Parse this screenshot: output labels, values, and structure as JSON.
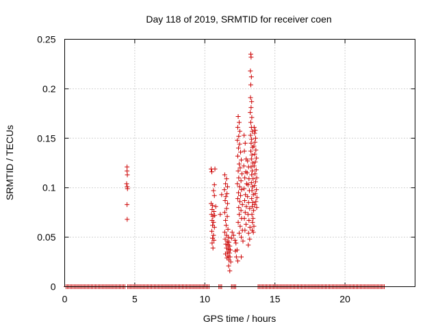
{
  "chart_data": {
    "type": "scatter",
    "title": "Day 118 of 2019, SRMTID for receiver coen",
    "xlabel": "GPS time / hours",
    "ylabel": "SRMTID / TECUs",
    "xlim": [
      0,
      25
    ],
    "ylim": [
      0,
      0.25
    ],
    "xticks": [
      0,
      5,
      10,
      15,
      20
    ],
    "xtick_labels": [
      "0",
      "5",
      "10",
      "15",
      "20"
    ],
    "yticks": [
      0,
      0.05,
      0.1,
      0.15,
      0.2,
      0.25
    ],
    "ytick_labels": [
      "0",
      "0.05",
      "0.1",
      "0.15",
      "0.2",
      "0.25"
    ],
    "grid": true,
    "marker": "plus",
    "color": "#cc0000",
    "series": [
      {
        "name": "SRMTID",
        "points": [
          [
            4.45,
            0.121
          ],
          [
            4.45,
            0.117
          ],
          [
            4.47,
            0.113
          ],
          [
            4.42,
            0.104
          ],
          [
            4.46,
            0.101
          ],
          [
            4.48,
            0.099
          ],
          [
            4.45,
            0.083
          ],
          [
            4.46,
            0.068
          ],
          [
            10.45,
            0.119
          ],
          [
            10.5,
            0.116
          ],
          [
            10.72,
            0.119
          ],
          [
            10.68,
            0.103
          ],
          [
            10.62,
            0.097
          ],
          [
            10.68,
            0.092
          ],
          [
            10.45,
            0.084
          ],
          [
            10.55,
            0.082
          ],
          [
            10.78,
            0.081
          ],
          [
            10.52,
            0.078
          ],
          [
            10.65,
            0.076
          ],
          [
            10.48,
            0.073
          ],
          [
            10.58,
            0.071
          ],
          [
            10.7,
            0.072
          ],
          [
            10.52,
            0.067
          ],
          [
            10.62,
            0.065
          ],
          [
            10.55,
            0.062
          ],
          [
            10.68,
            0.06
          ],
          [
            10.5,
            0.056
          ],
          [
            10.62,
            0.052
          ],
          [
            10.55,
            0.049
          ],
          [
            10.65,
            0.047
          ],
          [
            10.52,
            0.044
          ],
          [
            10.58,
            0.039
          ],
          [
            11.1,
            0.073
          ],
          [
            11.2,
            0.093
          ],
          [
            11.42,
            0.113
          ],
          [
            11.55,
            0.109
          ],
          [
            11.48,
            0.104
          ],
          [
            11.62,
            0.101
          ],
          [
            11.4,
            0.098
          ],
          [
            11.58,
            0.094
          ],
          [
            11.5,
            0.091
          ],
          [
            11.45,
            0.087
          ],
          [
            11.62,
            0.084
          ],
          [
            11.55,
            0.079
          ],
          [
            11.42,
            0.075
          ],
          [
            11.6,
            0.071
          ],
          [
            11.48,
            0.067
          ],
          [
            11.52,
            0.062
          ],
          [
            11.65,
            0.058
          ],
          [
            11.42,
            0.055
          ],
          [
            11.55,
            0.052
          ],
          [
            11.68,
            0.05
          ],
          [
            11.45,
            0.048
          ],
          [
            11.6,
            0.046
          ],
          [
            11.72,
            0.045
          ],
          [
            11.5,
            0.043
          ],
          [
            11.65,
            0.042
          ],
          [
            11.78,
            0.041
          ],
          [
            11.55,
            0.039
          ],
          [
            11.7,
            0.038
          ],
          [
            11.82,
            0.037
          ],
          [
            11.6,
            0.035
          ],
          [
            11.75,
            0.034
          ],
          [
            11.48,
            0.033
          ],
          [
            11.65,
            0.031
          ],
          [
            11.8,
            0.03
          ],
          [
            11.58,
            0.029
          ],
          [
            11.72,
            0.027
          ],
          [
            11.85,
            0.025
          ],
          [
            11.7,
            0.021
          ],
          [
            11.78,
            0.016
          ],
          [
            11.9,
            0.049
          ],
          [
            11.95,
            0.055
          ],
          [
            12.05,
            0.052
          ],
          [
            12.15,
            0.047
          ],
          [
            12.22,
            0.044
          ],
          [
            12.18,
            0.036
          ],
          [
            12.3,
            0.037
          ],
          [
            12.25,
            0.03
          ],
          [
            12.35,
            0.026
          ],
          [
            12.6,
            0.03
          ],
          [
            12.38,
            0.172
          ],
          [
            12.45,
            0.166
          ],
          [
            12.35,
            0.161
          ],
          [
            12.5,
            0.157
          ],
          [
            12.42,
            0.152
          ],
          [
            12.32,
            0.148
          ],
          [
            12.48,
            0.144
          ],
          [
            12.4,
            0.14
          ],
          [
            12.55,
            0.136
          ],
          [
            12.35,
            0.132
          ],
          [
            12.6,
            0.128
          ],
          [
            12.45,
            0.124
          ],
          [
            12.52,
            0.12
          ],
          [
            12.38,
            0.117
          ],
          [
            12.65,
            0.114
          ],
          [
            12.42,
            0.11
          ],
          [
            12.58,
            0.107
          ],
          [
            12.32,
            0.104
          ],
          [
            12.48,
            0.101
          ],
          [
            12.62,
            0.098
          ],
          [
            12.4,
            0.095
          ],
          [
            12.55,
            0.092
          ],
          [
            12.35,
            0.089
          ],
          [
            12.5,
            0.086
          ],
          [
            12.68,
            0.083
          ],
          [
            12.42,
            0.08
          ],
          [
            12.58,
            0.077
          ],
          [
            12.45,
            0.073
          ],
          [
            12.62,
            0.069
          ],
          [
            12.38,
            0.065
          ],
          [
            12.52,
            0.061
          ],
          [
            12.68,
            0.057
          ],
          [
            12.45,
            0.054
          ],
          [
            12.6,
            0.05
          ],
          [
            12.72,
            0.046
          ],
          [
            12.8,
            0.153
          ],
          [
            12.88,
            0.145
          ],
          [
            12.82,
            0.137
          ],
          [
            12.95,
            0.129
          ],
          [
            12.78,
            0.122
          ],
          [
            12.92,
            0.116
          ],
          [
            12.85,
            0.11
          ],
          [
            12.98,
            0.104
          ],
          [
            12.8,
            0.099
          ],
          [
            12.9,
            0.093
          ],
          [
            12.84,
            0.087
          ],
          [
            12.96,
            0.081
          ],
          [
            12.88,
            0.075
          ],
          [
            12.82,
            0.069
          ],
          [
            12.94,
            0.063
          ],
          [
            12.86,
            0.057
          ],
          [
            13.05,
            0.127
          ],
          [
            13.12,
            0.121
          ],
          [
            13.02,
            0.115
          ],
          [
            13.15,
            0.109
          ],
          [
            13.08,
            0.103
          ],
          [
            13.18,
            0.097
          ],
          [
            13.05,
            0.091
          ],
          [
            13.12,
            0.085
          ],
          [
            13.2,
            0.079
          ],
          [
            13.08,
            0.073
          ],
          [
            13.15,
            0.067
          ],
          [
            13.22,
            0.06
          ],
          [
            13.12,
            0.054
          ],
          [
            13.2,
            0.048
          ],
          [
            13.1,
            0.042
          ],
          [
            13.28,
            0.235
          ],
          [
            13.3,
            0.232
          ],
          [
            13.25,
            0.218
          ],
          [
            13.32,
            0.212
          ],
          [
            13.28,
            0.204
          ],
          [
            13.26,
            0.191
          ],
          [
            13.34,
            0.187
          ],
          [
            13.3,
            0.181
          ],
          [
            13.24,
            0.176
          ],
          [
            13.35,
            0.171
          ],
          [
            13.28,
            0.166
          ],
          [
            13.32,
            0.161
          ],
          [
            13.38,
            0.157
          ],
          [
            13.26,
            0.153
          ],
          [
            13.34,
            0.149
          ],
          [
            13.3,
            0.145
          ],
          [
            13.4,
            0.141
          ],
          [
            13.28,
            0.137
          ],
          [
            13.36,
            0.133
          ],
          [
            13.32,
            0.129
          ],
          [
            13.42,
            0.125
          ],
          [
            13.3,
            0.121
          ],
          [
            13.38,
            0.117
          ],
          [
            13.34,
            0.113
          ],
          [
            13.44,
            0.109
          ],
          [
            13.32,
            0.105
          ],
          [
            13.4,
            0.101
          ],
          [
            13.36,
            0.097
          ],
          [
            13.46,
            0.093
          ],
          [
            13.34,
            0.089
          ],
          [
            13.42,
            0.085
          ],
          [
            13.38,
            0.081
          ],
          [
            13.48,
            0.077
          ],
          [
            13.36,
            0.073
          ],
          [
            13.44,
            0.069
          ],
          [
            13.4,
            0.065
          ],
          [
            13.5,
            0.061
          ],
          [
            13.38,
            0.057
          ],
          [
            13.46,
            0.055
          ],
          [
            13.52,
            0.161
          ],
          [
            13.6,
            0.158
          ],
          [
            13.55,
            0.155
          ],
          [
            13.62,
            0.15
          ],
          [
            13.58,
            0.146
          ],
          [
            13.5,
            0.142
          ],
          [
            13.64,
            0.138
          ],
          [
            13.56,
            0.134
          ],
          [
            13.68,
            0.13
          ],
          [
            13.6,
            0.126
          ],
          [
            13.52,
            0.122
          ],
          [
            13.66,
            0.118
          ],
          [
            13.58,
            0.114
          ],
          [
            13.7,
            0.11
          ],
          [
            13.62,
            0.106
          ],
          [
            13.54,
            0.102
          ],
          [
            13.68,
            0.098
          ],
          [
            13.6,
            0.094
          ],
          [
            13.72,
            0.09
          ],
          [
            13.64,
            0.086
          ],
          [
            13.56,
            0.083
          ],
          [
            13.7,
            0.08
          ]
        ]
      },
      {
        "name": "zero-level",
        "y": 0,
        "x_segments": [
          [
            0.1,
            4.3
          ],
          [
            4.5,
            10.3
          ],
          [
            11.0,
            11.2
          ],
          [
            11.9,
            12.2
          ],
          [
            13.8,
            22.8
          ]
        ],
        "x_step": 0.1
      }
    ]
  }
}
